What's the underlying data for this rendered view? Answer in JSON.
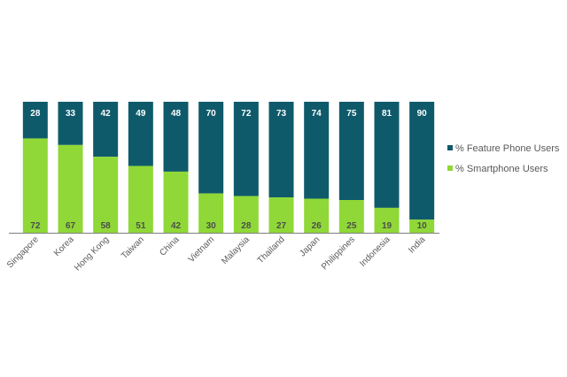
{
  "chart_data": {
    "type": "bar",
    "stacked": true,
    "percent_stacked": true,
    "categories": [
      "Singapore",
      "Korea",
      "Hong Kong",
      "Taiwan",
      "China",
      "Vietnam",
      "Malaysia",
      "Thailand",
      "Japan",
      "Philippines",
      "Indonesia",
      "India"
    ],
    "series": [
      {
        "name": "% Smartphone Users",
        "color": "#8fd837",
        "values": [
          72,
          67,
          58,
          51,
          42,
          30,
          28,
          27,
          26,
          25,
          19,
          10
        ]
      },
      {
        "name": "% Feature Phone Users",
        "color": "#0f5a6a",
        "values": [
          28,
          33,
          42,
          49,
          48,
          70,
          72,
          73,
          74,
          75,
          81,
          90
        ]
      }
    ],
    "ylim": [
      0,
      100
    ],
    "grid": false,
    "legend_position": "right"
  }
}
